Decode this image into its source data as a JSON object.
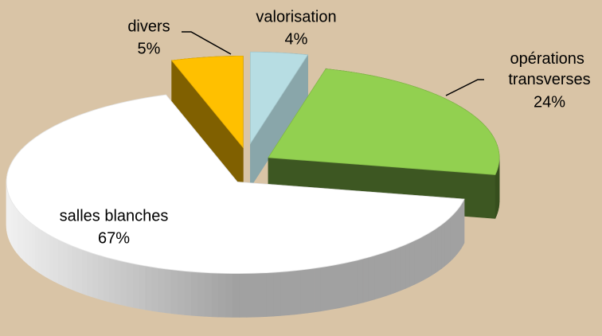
{
  "chart_data": {
    "type": "pie",
    "categories": [
      "valorisation",
      "opérations transverses",
      "salles blanches",
      "divers"
    ],
    "values": [
      4,
      24,
      67,
      5
    ],
    "value_labels": [
      "4%",
      "24%",
      "67%",
      "5%"
    ],
    "colors": [
      "#b7dde3",
      "#92d050",
      "#ffffff",
      "#ffc000"
    ]
  }
}
